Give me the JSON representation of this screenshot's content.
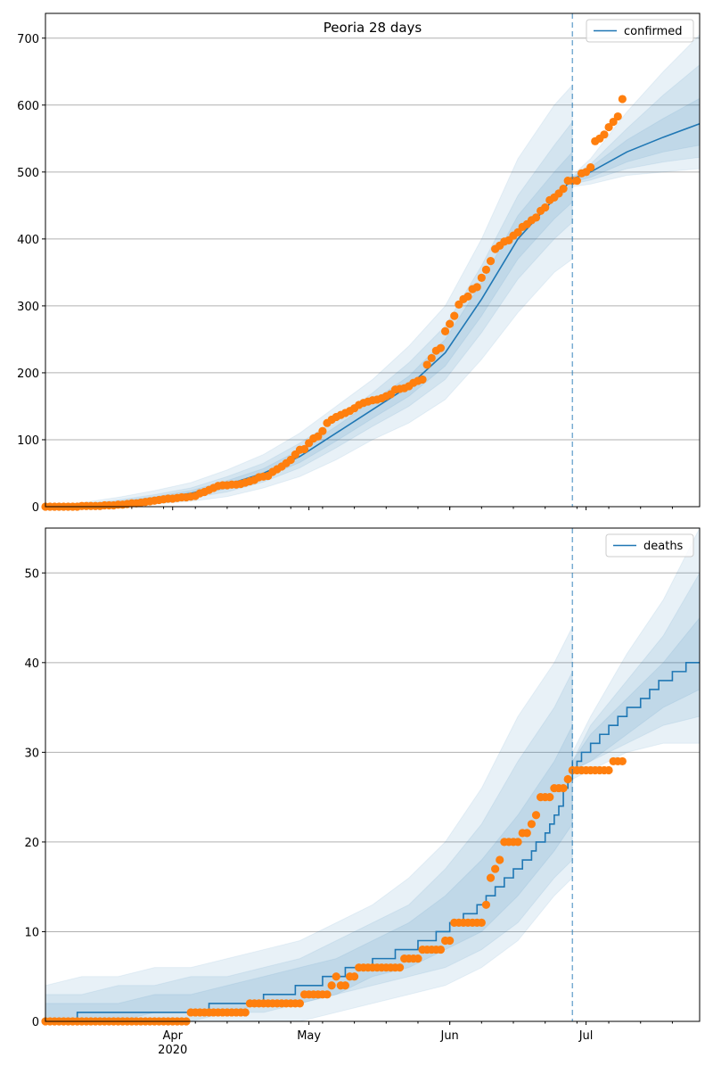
{
  "chart_data": [
    {
      "type": "line",
      "title": "Peoria 28 days",
      "x_start_date": "2020-03-04",
      "x_end_day": 144,
      "forecast_start_day": 116,
      "ylim": [
        0,
        737
      ],
      "yticks": [
        0,
        100,
        200,
        300,
        400,
        500,
        600,
        700
      ],
      "xticks": [
        {
          "day": 28,
          "label": "Apr",
          "sublabel": "2020"
        },
        {
          "day": 58,
          "label": "May"
        },
        {
          "day": 89,
          "label": "Jun"
        },
        {
          "day": 119,
          "label": "Jul"
        }
      ],
      "legend": {
        "label": "confirmed",
        "placement": "top-right"
      },
      "grid": "y",
      "observed": [
        0,
        0,
        0,
        0,
        0,
        0,
        0,
        0,
        1,
        1,
        1,
        1,
        1,
        2,
        2,
        2,
        3,
        3,
        4,
        5,
        5,
        6,
        7,
        8,
        9,
        10,
        11,
        12,
        12,
        13,
        14,
        14,
        15,
        16,
        20,
        22,
        25,
        28,
        31,
        32,
        32,
        33,
        33,
        34,
        36,
        38,
        40,
        44,
        45,
        46,
        52,
        56,
        60,
        65,
        70,
        78,
        85,
        86,
        95,
        102,
        105,
        113,
        125,
        130,
        134,
        137,
        140,
        143,
        147,
        152,
        155,
        157,
        159,
        160,
        162,
        165,
        168,
        175,
        176,
        177,
        180,
        185,
        188,
        190,
        212,
        222,
        233,
        237,
        262,
        273,
        285,
        302,
        310,
        314,
        325,
        328,
        342,
        354,
        367,
        385,
        390,
        396,
        398,
        405,
        410,
        418,
        422,
        428,
        432,
        442,
        447,
        458,
        462,
        468,
        475,
        487,
        487,
        487,
        498,
        500,
        507,
        546,
        550,
        556,
        567,
        575,
        583,
        609
      ],
      "model_pre": {
        "days": [
          0,
          8,
          16,
          24,
          32,
          40,
          48,
          56,
          64,
          72,
          80,
          88,
          96,
          104,
          112,
          116
        ],
        "median": [
          0,
          2,
          6,
          12,
          20,
          33,
          50,
          75,
          110,
          145,
          180,
          230,
          310,
          400,
          460,
          490
        ],
        "outer_lo": [
          0,
          0,
          1,
          4,
          8,
          15,
          28,
          45,
          70,
          100,
          125,
          160,
          220,
          290,
          350,
          370
        ],
        "outer_hi": [
          3,
          6,
          14,
          24,
          36,
          55,
          78,
          110,
          150,
          190,
          240,
          300,
          400,
          520,
          600,
          630
        ],
        "mid_lo": [
          0,
          1,
          3,
          7,
          13,
          22,
          37,
          58,
          88,
          120,
          150,
          190,
          260,
          340,
          400,
          425
        ],
        "mid_hi": [
          2,
          4,
          10,
          18,
          28,
          45,
          65,
          95,
          130,
          170,
          215,
          270,
          360,
          465,
          540,
          575
        ],
        "inner_lo": [
          0,
          1,
          4,
          9,
          16,
          27,
          43,
          66,
          98,
          132,
          165,
          210,
          285,
          370,
          430,
          455
        ],
        "inner_hi": [
          1,
          3,
          8,
          15,
          24,
          39,
          57,
          85,
          120,
          158,
          195,
          250,
          335,
          435,
          500,
          530
        ]
      },
      "model_post": {
        "days": [
          116,
          120,
          128,
          136,
          144
        ],
        "median": [
          490,
          500,
          530,
          552,
          572
        ],
        "outer_lo": [
          478,
          482,
          495,
          500,
          505
        ],
        "outer_hi": [
          495,
          520,
          590,
          650,
          705
        ],
        "mid_lo": [
          482,
          488,
          505,
          515,
          522
        ],
        "mid_hi": [
          493,
          512,
          565,
          615,
          660
        ],
        "inner_lo": [
          485,
          492,
          515,
          530,
          540
        ],
        "inner_hi": [
          492,
          507,
          548,
          580,
          610
        ]
      }
    },
    {
      "type": "line",
      "title": "",
      "x_start_date": "2020-03-04",
      "x_end_day": 144,
      "forecast_start_day": 116,
      "ylim": [
        0,
        55
      ],
      "yticks": [
        0,
        10,
        20,
        30,
        40,
        50
      ],
      "xticks": [
        {
          "day": 28,
          "label": "Apr",
          "sublabel": "2020"
        },
        {
          "day": 58,
          "label": "May"
        },
        {
          "day": 89,
          "label": "Jun"
        },
        {
          "day": 119,
          "label": "Jul"
        }
      ],
      "legend": {
        "label": "deaths",
        "placement": "top-right"
      },
      "grid": "y",
      "observed": [
        0,
        0,
        0,
        0,
        0,
        0,
        0,
        0,
        0,
        0,
        0,
        0,
        0,
        0,
        0,
        0,
        0,
        0,
        0,
        0,
        0,
        0,
        0,
        0,
        0,
        0,
        0,
        0,
        0,
        0,
        0,
        0,
        1,
        1,
        1,
        1,
        1,
        1,
        1,
        1,
        1,
        1,
        1,
        1,
        1,
        2,
        2,
        2,
        2,
        2,
        2,
        2,
        2,
        2,
        2,
        2,
        2,
        3,
        3,
        3,
        3,
        3,
        3,
        4,
        5,
        4,
        4,
        5,
        5,
        6,
        6,
        6,
        6,
        6,
        6,
        6,
        6,
        6,
        6,
        7,
        7,
        7,
        7,
        8,
        8,
        8,
        8,
        8,
        9,
        9,
        11,
        11,
        11,
        11,
        11,
        11,
        11,
        13,
        16,
        17,
        18,
        20,
        20,
        20,
        20,
        21,
        21,
        22,
        23,
        25,
        25,
        25,
        26,
        26,
        26,
        27,
        28,
        28,
        28,
        28,
        28,
        28,
        28,
        28,
        28,
        29,
        29,
        29
      ],
      "median_steps_pre": [
        [
          0,
          0
        ],
        [
          7,
          1
        ],
        [
          36,
          2
        ],
        [
          48,
          3
        ],
        [
          55,
          4
        ],
        [
          61,
          5
        ],
        [
          66,
          6
        ],
        [
          72,
          7
        ],
        [
          77,
          8
        ],
        [
          82,
          9
        ],
        [
          86,
          10
        ],
        [
          89,
          11
        ],
        [
          92,
          12
        ],
        [
          95,
          13
        ],
        [
          97,
          14
        ],
        [
          99,
          15
        ],
        [
          101,
          16
        ],
        [
          103,
          17
        ],
        [
          105,
          18
        ],
        [
          107,
          19
        ],
        [
          108,
          20
        ],
        [
          110,
          21
        ],
        [
          111,
          22
        ],
        [
          112,
          23
        ],
        [
          113,
          24
        ],
        [
          114,
          26
        ],
        [
          115,
          27
        ],
        [
          116,
          29
        ]
      ],
      "median_steps_post": [
        [
          116,
          28
        ],
        [
          117,
          29
        ],
        [
          118,
          30
        ],
        [
          120,
          31
        ],
        [
          122,
          32
        ],
        [
          124,
          33
        ],
        [
          126,
          34
        ],
        [
          128,
          35
        ],
        [
          131,
          36
        ],
        [
          133,
          37
        ],
        [
          135,
          38
        ],
        [
          138,
          39
        ],
        [
          141,
          40
        ],
        [
          144,
          40
        ]
      ],
      "model_pre": {
        "days": [
          0,
          8,
          16,
          24,
          32,
          40,
          48,
          56,
          64,
          72,
          80,
          88,
          96,
          104,
          112,
          116
        ],
        "outer_lo": [
          0,
          0,
          0,
          0,
          0,
          0,
          0,
          0,
          1,
          2,
          3,
          4,
          6,
          9,
          14,
          16
        ],
        "outer_hi": [
          4,
          5,
          5,
          6,
          6,
          7,
          8,
          9,
          11,
          13,
          16,
          20,
          26,
          34,
          40,
          44
        ],
        "mid_lo": [
          0,
          0,
          0,
          0,
          0,
          1,
          1,
          2,
          3,
          4,
          5,
          6,
          8,
          11,
          16,
          18
        ],
        "mid_hi": [
          3,
          3,
          4,
          4,
          5,
          5,
          6,
          7,
          9,
          11,
          13,
          17,
          22,
          29,
          35,
          39
        ],
        "inner_lo": [
          0,
          0,
          0,
          1,
          1,
          1,
          2,
          2,
          3,
          5,
          6,
          8,
          10,
          14,
          19,
          22
        ],
        "inner_hi": [
          2,
          2,
          2,
          3,
          3,
          4,
          5,
          6,
          7,
          9,
          11,
          14,
          18,
          23,
          29,
          33
        ]
      },
      "model_post": {
        "days": [
          116,
          120,
          128,
          136,
          144
        ],
        "outer_lo": [
          27,
          28,
          30,
          31,
          31
        ],
        "outer_hi": [
          30,
          34,
          41,
          47,
          55
        ],
        "mid_lo": [
          28,
          29,
          31,
          33,
          34
        ],
        "mid_hi": [
          29,
          33,
          38,
          43,
          50
        ],
        "inner_lo": [
          28,
          29,
          32,
          35,
          37
        ],
        "inner_hi": [
          29,
          32,
          36,
          40,
          45
        ]
      }
    }
  ],
  "colors": {
    "model": "#1f77b4",
    "observed": "#ff7f0e",
    "grid": "#b0b0b0"
  }
}
